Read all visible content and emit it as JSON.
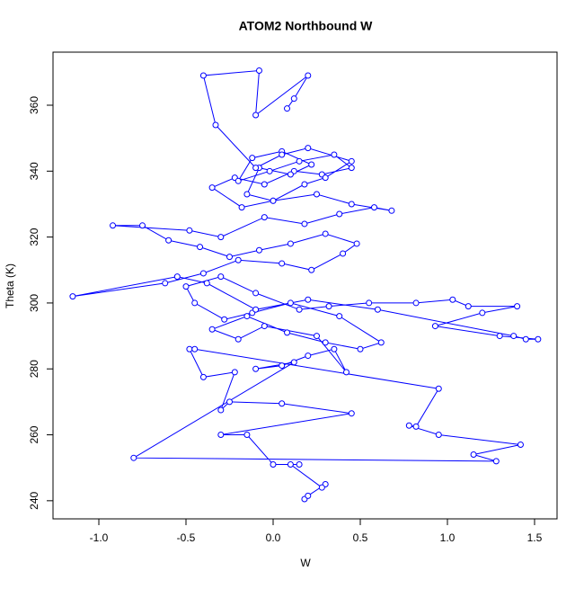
{
  "chart_data": {
    "type": "line",
    "title": "ATOM2 Northbound W",
    "x_label": "W",
    "y_label": "Theta (K)",
    "color": "#0000ff",
    "xlim": [
      -1.263,
      1.629
    ],
    "ylim": [
      234.5,
      376.1
    ],
    "xticks": [
      {
        "value": -1.0,
        "label": "-1.0"
      },
      -0.5,
      {
        "value": 0.0,
        "label": "0.0"
      },
      0.5,
      {
        "value": 1.0,
        "label": "1.0"
      },
      1.5
    ],
    "yticks": [
      240,
      260,
      280,
      300,
      320,
      340,
      360
    ],
    "x": [
      0.18,
      0.2,
      0.3,
      0.28,
      0.1,
      0.15,
      0.0,
      -0.15,
      -0.3,
      0.45,
      0.05,
      -0.25,
      -0.3,
      -0.22,
      -0.4,
      -0.48,
      -0.45,
      0.95,
      0.82,
      0.78,
      0.95,
      1.42,
      1.15,
      1.28,
      -0.8,
      0.12,
      -0.1,
      0.05,
      0.2,
      0.35,
      0.42,
      0.25,
      -0.05,
      -0.2,
      -0.35,
      -0.15,
      0.08,
      0.3,
      0.5,
      0.62,
      0.38,
      0.1,
      -0.12,
      -0.28,
      -0.45,
      -0.5,
      -0.3,
      -0.1,
      0.15,
      0.32,
      0.55,
      0.82,
      1.03,
      1.12,
      1.4,
      1.2,
      0.93,
      1.3,
      1.52,
      1.45,
      1.38,
      0.6,
      0.2,
      -0.1,
      -0.38,
      -0.55,
      -1.15,
      -0.62,
      -0.4,
      -0.2,
      0.05,
      0.22,
      0.4,
      0.48,
      0.3,
      0.1,
      -0.08,
      -0.25,
      -0.42,
      -0.6,
      -0.75,
      -0.92,
      -0.48,
      -0.3,
      -0.05,
      0.18,
      0.38,
      0.58,
      0.68,
      0.45,
      0.25,
      0.0,
      -0.18,
      -0.35,
      -0.22,
      -0.05,
      0.12,
      0.28,
      0.45,
      0.35,
      0.15,
      -0.02,
      -0.2,
      -0.12,
      0.05,
      0.22,
      0.1,
      -0.08,
      -0.15,
      0.0,
      0.18,
      0.3,
      0.45,
      0.2,
      0.05,
      -0.1,
      -0.33,
      -0.4,
      -0.08,
      -0.1,
      0.2,
      0.12,
      0.08
    ],
    "values": [
      240.5,
      241.5,
      245,
      244,
      251,
      251,
      251,
      260,
      260,
      266.5,
      269.5,
      270,
      267.5,
      279,
      277.5,
      286,
      286,
      274,
      262.5,
      262.8,
      260,
      257,
      254,
      252,
      253,
      282,
      280,
      281,
      284,
      286,
      279,
      290,
      293,
      289,
      292,
      296,
      291,
      288,
      286,
      288,
      296,
      300,
      297,
      295,
      300,
      305,
      308,
      303,
      298,
      299,
      300,
      300,
      301,
      299,
      299,
      297,
      293,
      290,
      289,
      289,
      290,
      298,
      301,
      298,
      306,
      308,
      302,
      306,
      309,
      313,
      312,
      310,
      315,
      318,
      321,
      318,
      316,
      314,
      317,
      319,
      323.5,
      323.5,
      322,
      320,
      326,
      324,
      327,
      329,
      328,
      330,
      333,
      331,
      329,
      335,
      338,
      336,
      340,
      339,
      341,
      345,
      343,
      340,
      337,
      344,
      346,
      342,
      339,
      341,
      333,
      331,
      336,
      338,
      343,
      347,
      345,
      341,
      354,
      369,
      370.5,
      357,
      369,
      362,
      359
    ]
  }
}
